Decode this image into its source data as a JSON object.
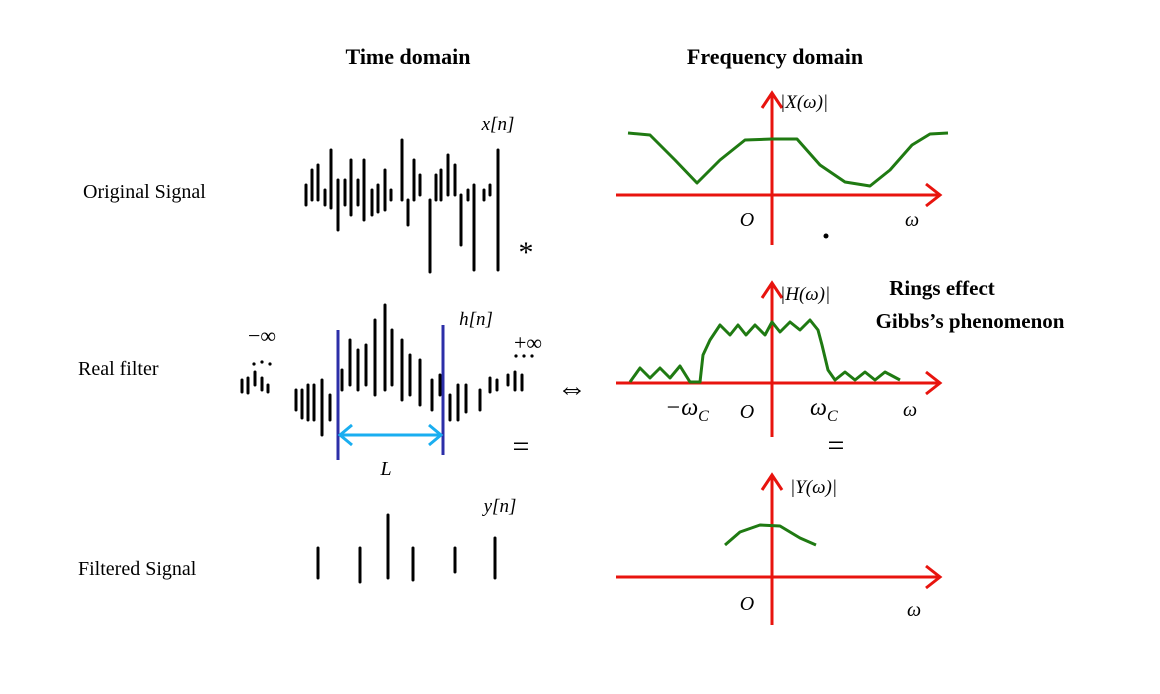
{
  "headers": {
    "time": "Time domain",
    "frequency": "Frequency domain"
  },
  "rows": [
    {
      "label": "Original Signal",
      "signal": "x[n]",
      "spectrum": "|X(ω)|",
      "origin": "O",
      "axis": "ω"
    },
    {
      "label": "Real filter",
      "signal": "h[n]",
      "spectrum": "|H(ω)|",
      "origin": "O",
      "axis": "ω"
    },
    {
      "label": "Filtered Signal",
      "signal": "y[n]",
      "spectrum": "|Y(ω)|",
      "origin": "O",
      "axis": "ω"
    }
  ],
  "operators": {
    "convolve": "*",
    "equivalent": "⇔",
    "equals_time": "=",
    "equals_freq": "="
  },
  "filter": {
    "minus_inf": "−∞",
    "plus_inf": "+∞",
    "length": "L",
    "cutoff_neg": "−ω",
    "cutoff_pos": "ω",
    "cutoff_sub": "C"
  },
  "annotation": [
    "Rings effect",
    "Gibbs’s phenomenon"
  ]
}
